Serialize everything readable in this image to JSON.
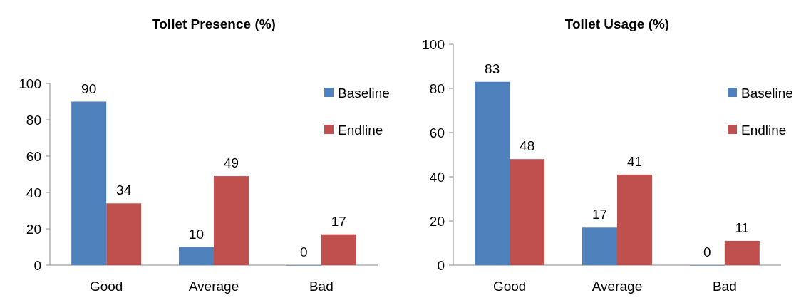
{
  "chart_data": [
    {
      "type": "bar",
      "title": "Toilet Presence (%)",
      "categories": [
        "Good",
        "Average",
        "Bad"
      ],
      "series": [
        {
          "name": "Baseline",
          "color": "#4f81bd",
          "values": [
            90,
            10,
            0
          ]
        },
        {
          "name": "Endline",
          "color": "#c0504d",
          "values": [
            34,
            49,
            17
          ]
        }
      ],
      "ylim": [
        0,
        100
      ],
      "yticks": [
        0,
        20,
        40,
        60,
        80,
        100
      ],
      "data_labels": true,
      "legend": "right",
      "grid": false
    },
    {
      "type": "bar",
      "title": "Toilet Usage (%)",
      "categories": [
        "Good",
        "Average",
        "Bad"
      ],
      "series": [
        {
          "name": "Baseline",
          "color": "#4f81bd",
          "values": [
            83,
            17,
            0
          ]
        },
        {
          "name": "Endline",
          "color": "#c0504d",
          "values": [
            48,
            41,
            11
          ]
        }
      ],
      "ylim": [
        0,
        100
      ],
      "yticks": [
        0,
        20,
        40,
        60,
        80,
        100
      ],
      "data_labels": true,
      "legend": "right",
      "grid": false
    }
  ]
}
